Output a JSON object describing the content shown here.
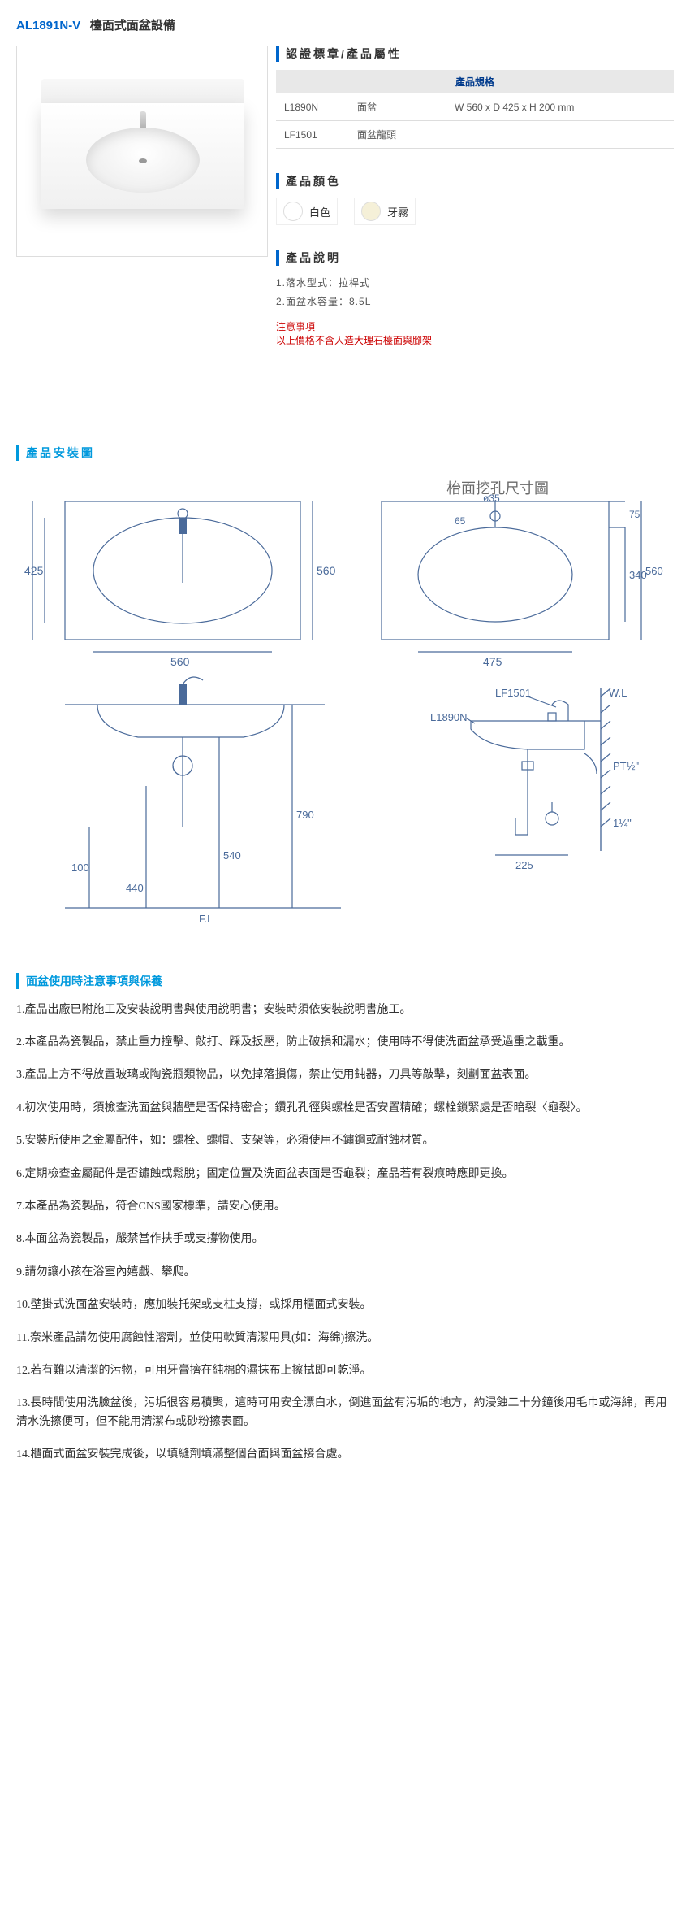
{
  "product": {
    "code": "AL1891N-V",
    "name": "檯面式面盆設備"
  },
  "sections": {
    "spec_title": "認證標章/產品屬性",
    "spec_header": "產品規格",
    "color_title": "產品顏色",
    "desc_title": "產品說明",
    "install_title": "產品安裝圖",
    "care_title": "面盆使用時注意事項與保養"
  },
  "spec_rows": [
    {
      "code": "L1890N",
      "name": "面盆",
      "dim": "W 560 x D 425 x H 200 mm"
    },
    {
      "code": "LF1501",
      "name": "面盆龍頭",
      "dim": ""
    }
  ],
  "colors": [
    {
      "label": "白色",
      "cls": "chip-white"
    },
    {
      "label": "牙霧",
      "cls": "chip-ivory"
    }
  ],
  "desc": [
    "1.落水型式：拉桿式",
    "2.面盆水容量：8.5L"
  ],
  "notice": {
    "title": "注意事項",
    "text": "以上價格不含人造大理石檯面與腳架"
  },
  "diagram": {
    "labels": {
      "cutout": "枱面挖孔尺寸圖",
      "d35": "ø35",
      "d65": "65",
      "d75": "75",
      "h425": "425",
      "h560": "560",
      "w560": "560",
      "h340": "340",
      "w475": "475",
      "lf1501": "LF1501",
      "l1890n": "L1890N",
      "wl": "W.L",
      "pt": "PT½\"",
      "d14": "1¼\"",
      "d100": "100",
      "d440": "440",
      "d540": "540",
      "d790": "790",
      "d225": "225",
      "fl": "F.L"
    },
    "color": "#4a6a9a"
  },
  "care": [
    "1.產品出廠已附施工及安裝說明書與使用說明書；安裝時須依安裝說明書施工。",
    "2.本產品為瓷製品，禁止重力撞擊、敲打、踩及扳壓，防止破損和漏水；使用時不得使洗面盆承受過重之載重。",
    "3.產品上方不得放置玻璃或陶瓷瓶類物品，以免掉落損傷，禁止使用鈍器，刀具等敲擊，刻劃面盆表面。",
    "4.初次使用時，須檢查洗面盆與牆壁是否保持密合；鑽孔孔徑與螺栓是否安置精確；螺栓鎖緊處是否暗裂〈龜裂〉。",
    "5.安裝所使用之金屬配件，如：螺栓、螺帽、支架等，必須使用不鏽鋼或耐蝕材質。",
    "6.定期檢查金屬配件是否鏽蝕或鬆脫；固定位置及洗面盆表面是否龜裂；產品若有裂痕時應即更換。",
    "7.本產品為瓷製品，符合CNS國家標準，請安心使用。",
    "8.本面盆為瓷製品，嚴禁當作扶手或支撐物使用。",
    "9.請勿讓小孩在浴室內嬉戲、攀爬。",
    "10.壁掛式洗面盆安裝時，應加裝托架或支柱支撐，或採用櫃面式安裝。",
    "11.奈米產品請勿使用腐蝕性溶劑，並使用軟質清潔用具(如：海綿)擦洗。",
    "12.若有難以清潔的污物，可用牙膏擠在純棉的濕抹布上擦拭即可乾淨。",
    "13.長時間使用洗臉盆後，污垢很容易積聚，這時可用安全漂白水，倒進面盆有污垢的地方，約浸蝕二十分鐘後用毛巾或海綿，再用清水洗擦便可，但不能用清潔布或砂粉擦表面。",
    "14.櫃面式面盆安裝完成後，以填縫劑填滿整個台面與面盆接合處。"
  ]
}
